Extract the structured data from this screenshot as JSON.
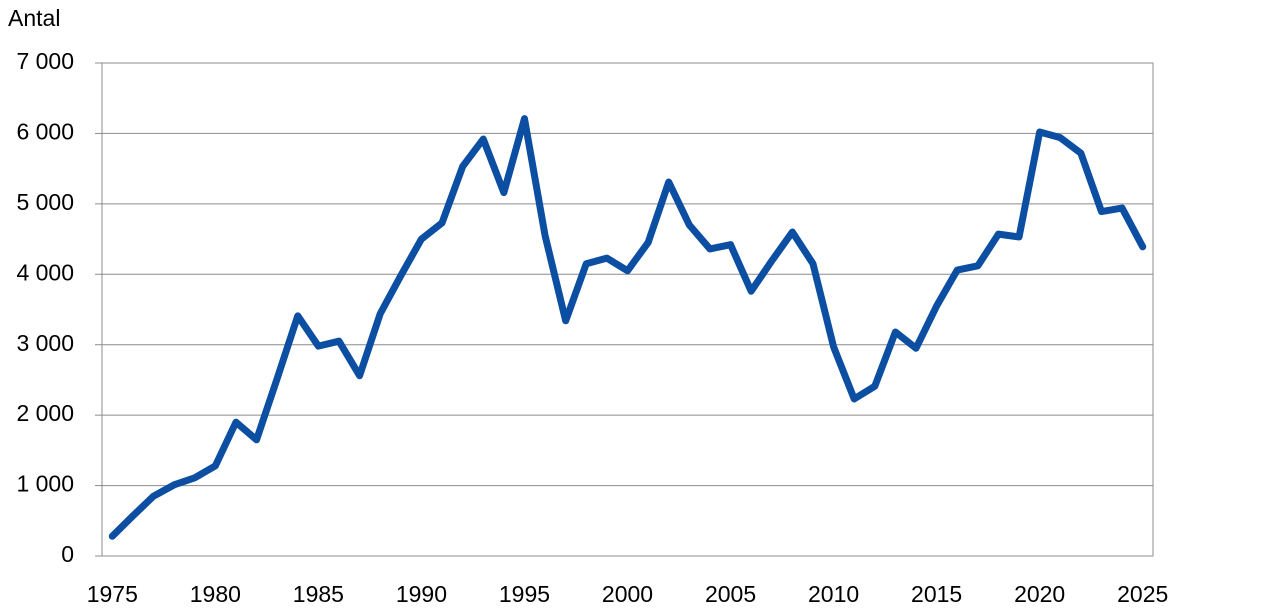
{
  "chart_data": {
    "type": "line",
    "y_label": "Antal",
    "x": [
      1975,
      1976,
      1977,
      1978,
      1979,
      1980,
      1981,
      1982,
      1983,
      1984,
      1985,
      1986,
      1987,
      1988,
      1989,
      1990,
      1991,
      1992,
      1993,
      1994,
      1995,
      1996,
      1997,
      1998,
      1999,
      2000,
      2001,
      2002,
      2003,
      2004,
      2005,
      2006,
      2007,
      2008,
      2009,
      2010,
      2011,
      2012,
      2013,
      2014,
      2015,
      2016,
      2017,
      2018,
      2019,
      2020,
      2021,
      2022,
      2023,
      2024,
      2025
    ],
    "series": [
      {
        "name": "Antal",
        "color": "#0b4ea2",
        "values": [
          280,
          570,
          850,
          1010,
          1110,
          1280,
          1900,
          1650,
          2520,
          3410,
          2980,
          3050,
          2560,
          3440,
          3980,
          4500,
          4730,
          5530,
          5920,
          5160,
          6210,
          4550,
          3340,
          4150,
          4230,
          4050,
          4450,
          5310,
          4700,
          4360,
          4420,
          3760,
          4190,
          4600,
          4150,
          2970,
          2230,
          2410,
          3180,
          2950,
          3550,
          4060,
          4120,
          4570,
          4530,
          6020,
          5940,
          5720,
          4890,
          4940,
          4390
        ]
      }
    ],
    "xlim": [
      1974.5,
      2025.5
    ],
    "xticks": [
      1975,
      1980,
      1985,
      1990,
      1995,
      2000,
      2005,
      2010,
      2015,
      2020,
      2025
    ],
    "ylim": [
      0,
      7000
    ],
    "yticks": [
      0,
      {
        "value": 1000,
        "label": "1 000"
      },
      {
        "value": 2000,
        "label": "2 000"
      },
      {
        "value": 3000,
        "label": "3 000"
      },
      {
        "value": 4000,
        "label": "4 000"
      },
      {
        "value": 5000,
        "label": "5 000"
      },
      {
        "value": 6000,
        "label": "6 000"
      },
      {
        "value": 7000,
        "label": "7 000"
      }
    ],
    "grid": true
  }
}
